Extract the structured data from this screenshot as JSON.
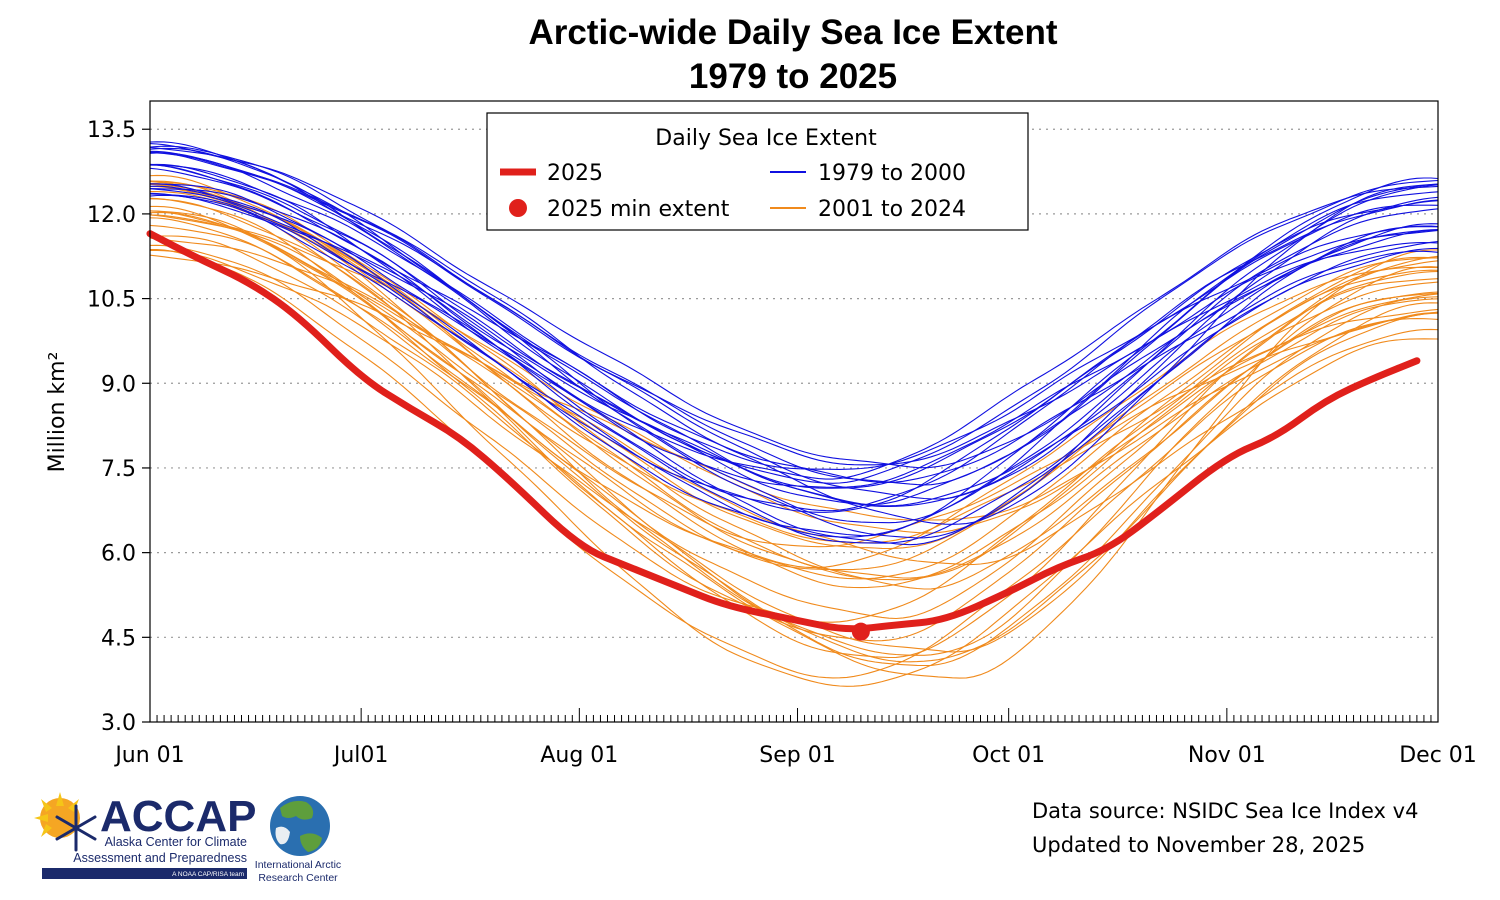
{
  "chart_data": {
    "type": "line",
    "title": "Arctic-wide Daily Sea Ice Extent",
    "subtitle": "1979 to 2025",
    "ylabel": "Million km²",
    "ylim": [
      3.0,
      14.0
    ],
    "yticks": [
      "3.0",
      "4.5",
      "6.0",
      "7.5",
      "9.0",
      "10.5",
      "12.0",
      "13.5"
    ],
    "xticks": [
      "Jun 01",
      "Jul01",
      "Aug 01",
      "Sep 01",
      "Oct 01",
      "Nov 01",
      "Dec 01"
    ],
    "x_range": [
      "Jun 01",
      "Dec 01"
    ],
    "grid": "horizontal dotted",
    "legend": {
      "title": "Daily Sea Ice Extent",
      "placement": "top-center",
      "entries": [
        {
          "label": "2025",
          "color": "#e0201b",
          "style": "thick-line"
        },
        {
          "label": "1979 to 2000",
          "color": "#1010e0",
          "style": "thin-line"
        },
        {
          "label": "2025 min extent",
          "color": "#e0201b",
          "style": "dot"
        },
        {
          "label": "2001 to 2024",
          "color": "#f08a1c",
          "style": "thin-line"
        }
      ]
    },
    "series": [
      {
        "name": "2025",
        "color": "#e0201b",
        "points": [
          [
            "Jun 01",
            11.65
          ],
          [
            "Jun 08",
            11.2
          ],
          [
            "Jun 15",
            10.8
          ],
          [
            "Jun 22",
            10.2
          ],
          [
            "Jul 01",
            9.1
          ],
          [
            "Jul 08",
            8.55
          ],
          [
            "Jul 15",
            8.05
          ],
          [
            "Jul 22",
            7.3
          ],
          [
            "Aug 01",
            6.1
          ],
          [
            "Aug 08",
            5.75
          ],
          [
            "Aug 15",
            5.4
          ],
          [
            "Aug 22",
            5.05
          ],
          [
            "Sep 01",
            4.8
          ],
          [
            "Sep 08",
            4.62
          ],
          [
            "Sep 15",
            4.72
          ],
          [
            "Sep 22",
            4.8
          ],
          [
            "Oct 01",
            5.3
          ],
          [
            "Oct 08",
            5.75
          ],
          [
            "Oct 15",
            6.05
          ],
          [
            "Oct 22",
            6.7
          ],
          [
            "Nov 01",
            7.7
          ],
          [
            "Nov 08",
            8.05
          ],
          [
            "Nov 15",
            8.7
          ],
          [
            "Nov 22",
            9.1
          ],
          [
            "Nov 28",
            9.4
          ]
        ]
      },
      {
        "name": "1979 to 2000",
        "color": "#1010e0",
        "count": 22,
        "range_start": [
          12.2,
          13.3
        ],
        "range_min": [
          6.0,
          7.6
        ],
        "range_end": [
          11.3,
          12.6
        ]
      },
      {
        "name": "2001 to 2024",
        "color": "#f08a1c",
        "count": 24,
        "range_start": [
          11.2,
          12.7
        ],
        "range_min": [
          3.4,
          6.7
        ],
        "range_end": [
          9.8,
          11.4
        ]
      }
    ],
    "min_point": {
      "label": "2025 min extent",
      "x": "Sep 10",
      "y": 4.6
    }
  },
  "footer": {
    "source_line1": "Data source: NSIDC Sea Ice Index v4",
    "source_line2": "Updated to November 28, 2025"
  },
  "logos": {
    "accap_name": "ACCAP",
    "accap_line1": "Alaska Center for Climate",
    "accap_line2": "Assessment and Preparedness",
    "accap_tag": "A NOAA CAP/RISA team",
    "iarc_line1": "International Arctic",
    "iarc_line2": "Research Center"
  }
}
